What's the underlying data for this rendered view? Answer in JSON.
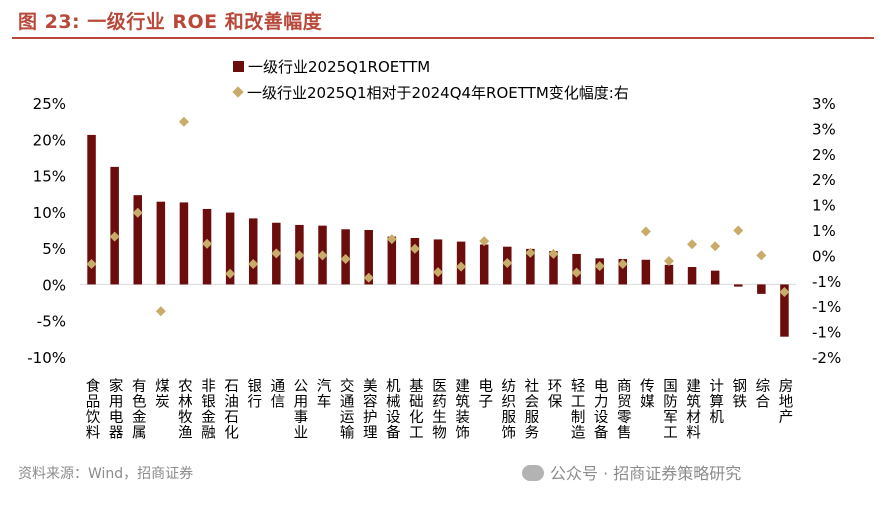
{
  "title": "图 23: 一级行业 ROE 和改善幅度",
  "source": "资料来源：Wind，招商证券",
  "watermark": "公众号 · 招商证券策略研究",
  "chart_data": {
    "type": "bar",
    "title": "",
    "legend_position": "top",
    "grid": false,
    "colors": {
      "bar": "#6b0d0d",
      "marker": "#c9ab6a",
      "title": "#b8493a"
    },
    "categories": [
      "食品饮料",
      "家用电器",
      "有色金属",
      "煤炭",
      "农林牧渔",
      "非银金融",
      "石油石化",
      "银行",
      "通信",
      "公用事业",
      "汽车",
      "交通运输",
      "美容护理",
      "机械设备",
      "基础化工",
      "医药生物",
      "建筑装饰",
      "电子",
      "纺织服饰",
      "社会服务",
      "环保",
      "轻工制造",
      "电力设备",
      "商贸零售",
      "传媒",
      "国防军工",
      "建筑材料",
      "计算机",
      "钢铁",
      "综合",
      "房地产"
    ],
    "series": [
      {
        "name": "一级行业2025Q1ROETTM",
        "axis": "left",
        "type": "bar",
        "values": [
          20.6,
          16.2,
          12.3,
          11.4,
          11.3,
          10.4,
          9.9,
          9.1,
          8.5,
          8.2,
          8.1,
          7.6,
          7.5,
          6.6,
          6.4,
          6.2,
          5.9,
          5.5,
          5.2,
          4.9,
          4.6,
          4.2,
          3.6,
          3.5,
          3.4,
          2.7,
          2.4,
          1.9,
          -0.3,
          -1.3,
          -7.2
        ],
        "unit": "%"
      },
      {
        "name": "一级行业2025Q1相对于2024Q4年ROETTM变化幅度:右",
        "axis": "right",
        "type": "scatter",
        "values": [
          -0.17,
          0.37,
          0.84,
          -1.1,
          2.63,
          0.23,
          -0.36,
          -0.17,
          0.04,
          0.0,
          0.0,
          -0.07,
          -0.44,
          0.32,
          0.13,
          -0.33,
          -0.22,
          0.28,
          -0.15,
          0.05,
          0.03,
          -0.34,
          -0.21,
          -0.17,
          0.47,
          -0.11,
          0.22,
          0.18,
          0.49,
          0.0,
          -0.72
        ],
        "unit": "%"
      }
    ],
    "y_left": {
      "lim": [
        -10,
        25
      ],
      "ticks": [
        -10,
        -5,
        0,
        5,
        10,
        15,
        20,
        25
      ],
      "tick_labels": [
        "-10%",
        "-5%",
        "0%",
        "5%",
        "10%",
        "15%",
        "20%",
        "25%"
      ]
    },
    "y_right": {
      "lim": [
        -2,
        3
      ],
      "tick_values": [
        -2,
        -1.5,
        -1,
        -0.5,
        0,
        0.5,
        1,
        1.5,
        2,
        2.5,
        3
      ],
      "tick_labels": [
        "-2%",
        "-1%",
        "-1%",
        "-1%",
        "0%",
        "1%",
        "1%",
        "2%",
        "2%",
        "3%",
        "3%"
      ]
    }
  }
}
